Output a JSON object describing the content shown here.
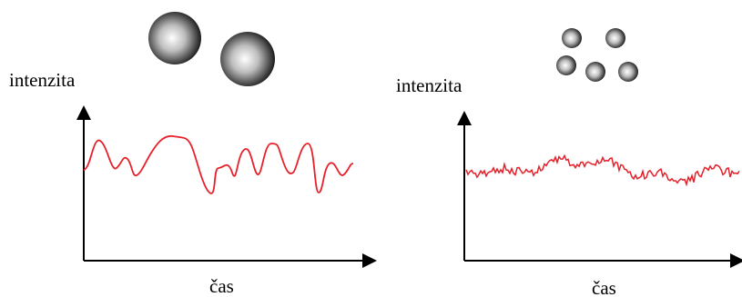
{
  "panels": [
    {
      "y_label": "intenzita",
      "x_label": "čas"
    },
    {
      "y_label": "intenzita",
      "x_label": "čas"
    }
  ]
}
